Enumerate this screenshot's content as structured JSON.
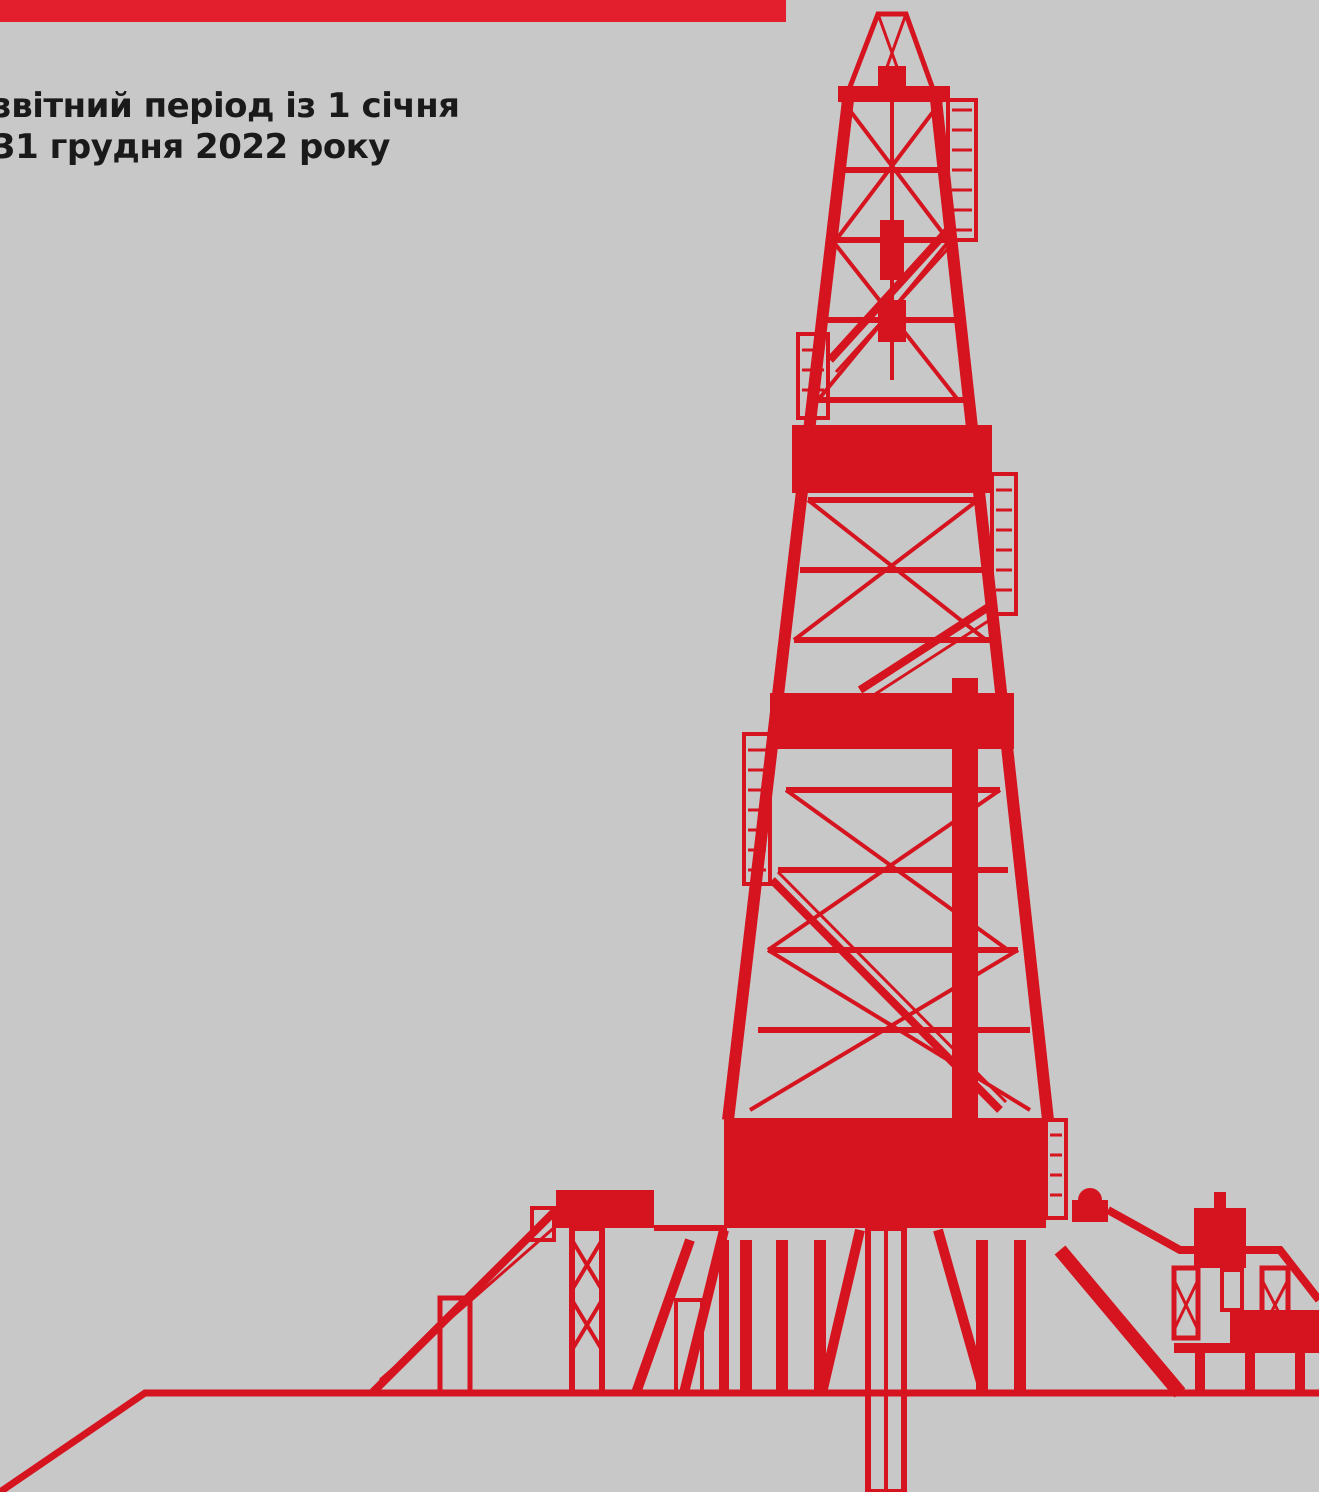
{
  "header": {
    "period_line_1": "звітний період із 1 січня",
    "period_line_2": "31 грудня 2022 року"
  },
  "colors": {
    "background": "#c8c8c8",
    "accent_red": "#e31e2d",
    "rig_red": "#d5141f",
    "text": "#1a1a1a"
  },
  "illustration": {
    "icon": "drilling-rig-icon"
  }
}
